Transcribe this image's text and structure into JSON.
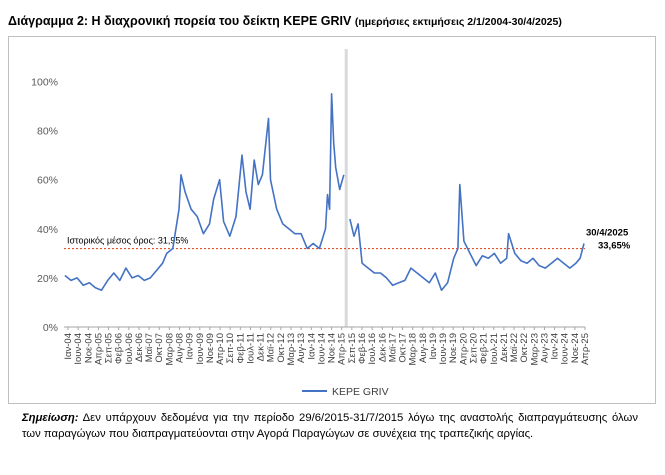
{
  "title": {
    "main": "Διάγραμμα 2: Η διαχρονική πορεία του δείκτη KEPE GRIV",
    "sub": "(ημερήσιες εκτιμήσεις 2/1/2004-30/4/2025)"
  },
  "note": {
    "label": "Σημείωση:",
    "text": "Δεν υπάρχουν δεδομένα για την περίοδο 29/6/2015-31/7/2015 λόγω της αναστολής διαπραγμάτευσης όλων των παραγώγων που διαπραγματεύονται στην Αγορά Παραγώγων σε συνέχεια της τραπεζικής αργίας."
  },
  "colors": {
    "series": "#4472c4",
    "mean_line": "#e8502a",
    "gap_band": "#d9d9d9",
    "grid": "#d9d9d9"
  },
  "chart_data": {
    "type": "line",
    "title": "",
    "xlabel": "",
    "ylabel": "",
    "ylim": [
      0,
      110
    ],
    "y_ticks": [
      "0%",
      "20%",
      "40%",
      "60%",
      "80%",
      "100%"
    ],
    "grid": false,
    "legend_position": "bottom",
    "x_ticks": [
      "Ιαν-04",
      "Ιουν-04",
      "Νοε-04",
      "Απρ-05",
      "Σεπ-05",
      "Φεβ-06",
      "Ιουλ-06",
      "Δεκ-06",
      "Μαϊ-07",
      "Οκτ-07",
      "Μαρ-08",
      "Αυγ-08",
      "Ιαν-09",
      "Ιουν-09",
      "Νοε-09",
      "Απρ-10",
      "Σεπ-10",
      "Φεβ-11",
      "Ιουλ-11",
      "Δεκ-11",
      "Μαϊ-12",
      "Οκτ-12",
      "Μαρ-13",
      "Αυγ-13",
      "Ιαν-14",
      "Ιουν-14",
      "Νοε-14",
      "Απρ-15",
      "Σεπ-15",
      "Φεβ-16",
      "Ιουλ-16",
      "Δεκ-16",
      "Μαϊ-17",
      "Οκτ-17",
      "Μαρ-18",
      "Αυγ-18",
      "Ιαν-19",
      "Ιουν-19",
      "Νοε-19",
      "Απρ-20",
      "Σεπ-20",
      "Φεβ-21",
      "Ιουλ-21",
      "Δεκ-21",
      "Μαϊ-22",
      "Οκτ-22",
      "Μαρ-23",
      "Αυγ-23",
      "Ιαν-24",
      "Ιουν-24",
      "Νοε-24",
      "Απρ-25"
    ],
    "series": [
      {
        "name": "KEPE GRIV",
        "x": [
          "2004-01",
          "2004-04",
          "2004-07",
          "2004-10",
          "2005-01",
          "2005-04",
          "2005-07",
          "2005-10",
          "2006-01",
          "2006-04",
          "2006-07",
          "2006-10",
          "2007-01",
          "2007-04",
          "2007-07",
          "2007-10",
          "2008-01",
          "2008-03",
          "2008-06",
          "2008-09",
          "2008-10",
          "2008-12",
          "2009-03",
          "2009-06",
          "2009-09",
          "2009-12",
          "2010-02",
          "2010-05",
          "2010-07",
          "2010-10",
          "2011-01",
          "2011-04",
          "2011-06",
          "2011-08",
          "2011-10",
          "2011-12",
          "2012-02",
          "2012-05",
          "2012-06",
          "2012-09",
          "2012-12",
          "2013-03",
          "2013-06",
          "2013-09",
          "2013-12",
          "2014-03",
          "2014-06",
          "2014-09",
          "2014-10",
          "2014-11",
          "2014-12",
          "2015-01",
          "2015-02",
          "2015-04",
          "2015-06",
          "2015-08",
          "2015-09",
          "2015-11",
          "2016-01",
          "2016-03",
          "2016-06",
          "2016-09",
          "2016-12",
          "2017-03",
          "2017-06",
          "2017-09",
          "2017-12",
          "2018-03",
          "2018-06",
          "2018-09",
          "2018-12",
          "2019-03",
          "2019-06",
          "2019-09",
          "2019-12",
          "2020-02",
          "2020-03",
          "2020-05",
          "2020-08",
          "2020-11",
          "2021-02",
          "2021-05",
          "2021-08",
          "2021-11",
          "2022-02",
          "2022-03",
          "2022-06",
          "2022-09",
          "2022-12",
          "2023-03",
          "2023-06",
          "2023-09",
          "2023-12",
          "2024-03",
          "2024-06",
          "2024-09",
          "2024-12",
          "2025-02",
          "2025-04"
        ],
        "values": [
          21,
          19,
          20,
          17,
          18,
          16,
          15,
          19,
          22,
          19,
          24,
          20,
          21,
          19,
          20,
          23,
          26,
          30,
          32,
          48,
          62,
          55,
          48,
          45,
          38,
          42,
          52,
          60,
          43,
          37,
          45,
          70,
          55,
          48,
          68,
          58,
          62,
          85,
          60,
          48,
          42,
          40,
          38,
          38,
          32,
          34,
          32,
          40,
          54,
          48,
          95,
          75,
          65,
          56,
          62,
          null,
          44,
          37,
          42,
          26,
          24,
          22,
          22,
          20,
          17,
          18,
          19,
          24,
          22,
          20,
          18,
          22,
          15,
          18,
          28,
          32,
          58,
          35,
          30,
          25,
          29,
          28,
          30,
          26,
          28,
          38,
          30,
          27,
          26,
          28,
          25,
          24,
          26,
          28,
          26,
          24,
          26,
          28,
          34
        ],
        "annotation": {
          "date_label": "30/4/2025",
          "value_label": "33,65%"
        }
      }
    ],
    "reference_line": {
      "value": 31.95,
      "label": "Ιστορικός μέσος όρος: 31,95%"
    },
    "gap_period": {
      "from": "2015-06-29",
      "to": "2015-07-31"
    }
  }
}
